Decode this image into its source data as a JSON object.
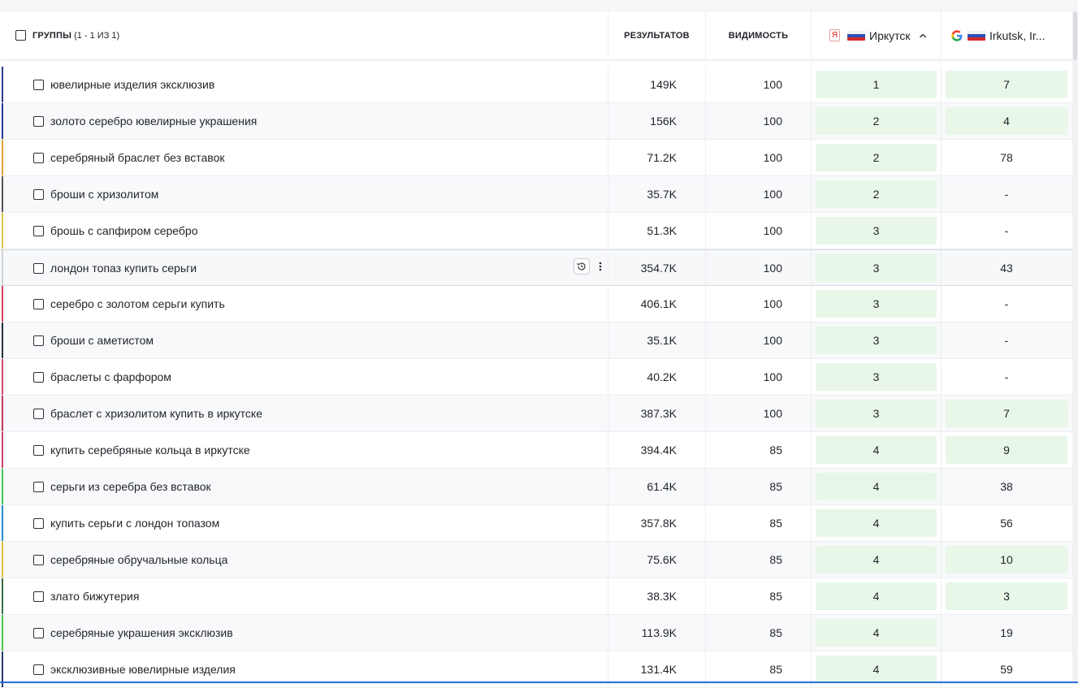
{
  "header": {
    "groups_label": "ГРУППЫ",
    "groups_count": "(1 - 1 ИЗ 1)",
    "results_label": "РЕЗУЛЬТАТОВ",
    "visibility_label": "ВИДИМОСТЬ",
    "yandex_icon_text": "Я",
    "yandex_region": "Иркутск",
    "google_region": "Irkutsk, Ir..."
  },
  "colors": {
    "top_position_bg": "#e8f7e8",
    "accent": "#2a6fd6"
  },
  "rows": [
    {
      "keyword": "ювелирные изделия эксклюзив",
      "results": "149K",
      "visibility": "100",
      "yandex": "1",
      "google": "7",
      "yandex_top": true,
      "google_top": true,
      "bar_color": "#2b3a8f"
    },
    {
      "keyword": "золото серебро ювелирные украшения",
      "results": "156K",
      "visibility": "100",
      "yandex": "2",
      "google": "4",
      "yandex_top": true,
      "google_top": true,
      "bar_color": "#2b3a8f"
    },
    {
      "keyword": "серебряный браслет без вставок",
      "results": "71.2K",
      "visibility": "100",
      "yandex": "2",
      "google": "78",
      "yandex_top": true,
      "google_top": false,
      "bar_color": "#e0a030"
    },
    {
      "keyword": "броши с хризолитом",
      "results": "35.7K",
      "visibility": "100",
      "yandex": "2",
      "google": "-",
      "yandex_top": true,
      "google_top": false,
      "bar_color": "#555555"
    },
    {
      "keyword": "брошь с сапфиром серебро",
      "results": "51.3K",
      "visibility": "100",
      "yandex": "3",
      "google": "-",
      "yandex_top": true,
      "google_top": false,
      "bar_color": "#d8c84a"
    },
    {
      "keyword": "лондон топаз купить серьги",
      "results": "354.7K",
      "visibility": "100",
      "yandex": "3",
      "google": "43",
      "yandex_top": true,
      "google_top": false,
      "bar_color": "#cfd2d6",
      "hover": true
    },
    {
      "keyword": "серебро с золотом серьги купить",
      "results": "406.1K",
      "visibility": "100",
      "yandex": "3",
      "google": "-",
      "yandex_top": true,
      "google_top": false,
      "bar_color": "#d04060"
    },
    {
      "keyword": "броши с аметистом",
      "results": "35.1K",
      "visibility": "100",
      "yandex": "3",
      "google": "-",
      "yandex_top": true,
      "google_top": false,
      "bar_color": "#2a2f45"
    },
    {
      "keyword": "браслеты с фарфором",
      "results": "40.2K",
      "visibility": "100",
      "yandex": "3",
      "google": "-",
      "yandex_top": true,
      "google_top": false,
      "bar_color": "#d04a6a"
    },
    {
      "keyword": "браслет с хризолитом купить в иркутске",
      "results": "387.3K",
      "visibility": "100",
      "yandex": "3",
      "google": "7",
      "yandex_top": true,
      "google_top": true,
      "bar_color": "#c03a5a"
    },
    {
      "keyword": "купить серебряные кольца в иркутске",
      "results": "394.4K",
      "visibility": "85",
      "yandex": "4",
      "google": "9",
      "yandex_top": true,
      "google_top": true,
      "bar_color": "#c84070"
    },
    {
      "keyword": "серьги из серебра без вставок",
      "results": "61.4K",
      "visibility": "85",
      "yandex": "4",
      "google": "38",
      "yandex_top": true,
      "google_top": false,
      "bar_color": "#45c455"
    },
    {
      "keyword": "купить серьги с лондон топазом",
      "results": "357.8K",
      "visibility": "85",
      "yandex": "4",
      "google": "56",
      "yandex_top": true,
      "google_top": false,
      "bar_color": "#2a8ad0"
    },
    {
      "keyword": "серебряные обручальные кольца",
      "results": "75.6K",
      "visibility": "85",
      "yandex": "4",
      "google": "10",
      "yandex_top": true,
      "google_top": true,
      "bar_color": "#d8c040"
    },
    {
      "keyword": "злато бижутерия",
      "results": "38.3K",
      "visibility": "85",
      "yandex": "4",
      "google": "3",
      "yandex_top": true,
      "google_top": true,
      "bar_color": "#3a6a4a"
    },
    {
      "keyword": "серебряные украшения эксклюзив",
      "results": "113.9K",
      "visibility": "85",
      "yandex": "4",
      "google": "19",
      "yandex_top": true,
      "google_top": false,
      "bar_color": "#4ac448"
    },
    {
      "keyword": "эксклюзивные ювелирные изделия",
      "results": "131.4K",
      "visibility": "85",
      "yandex": "4",
      "google": "59",
      "yandex_top": true,
      "google_top": false,
      "bar_color": "#2b3a6f"
    }
  ]
}
